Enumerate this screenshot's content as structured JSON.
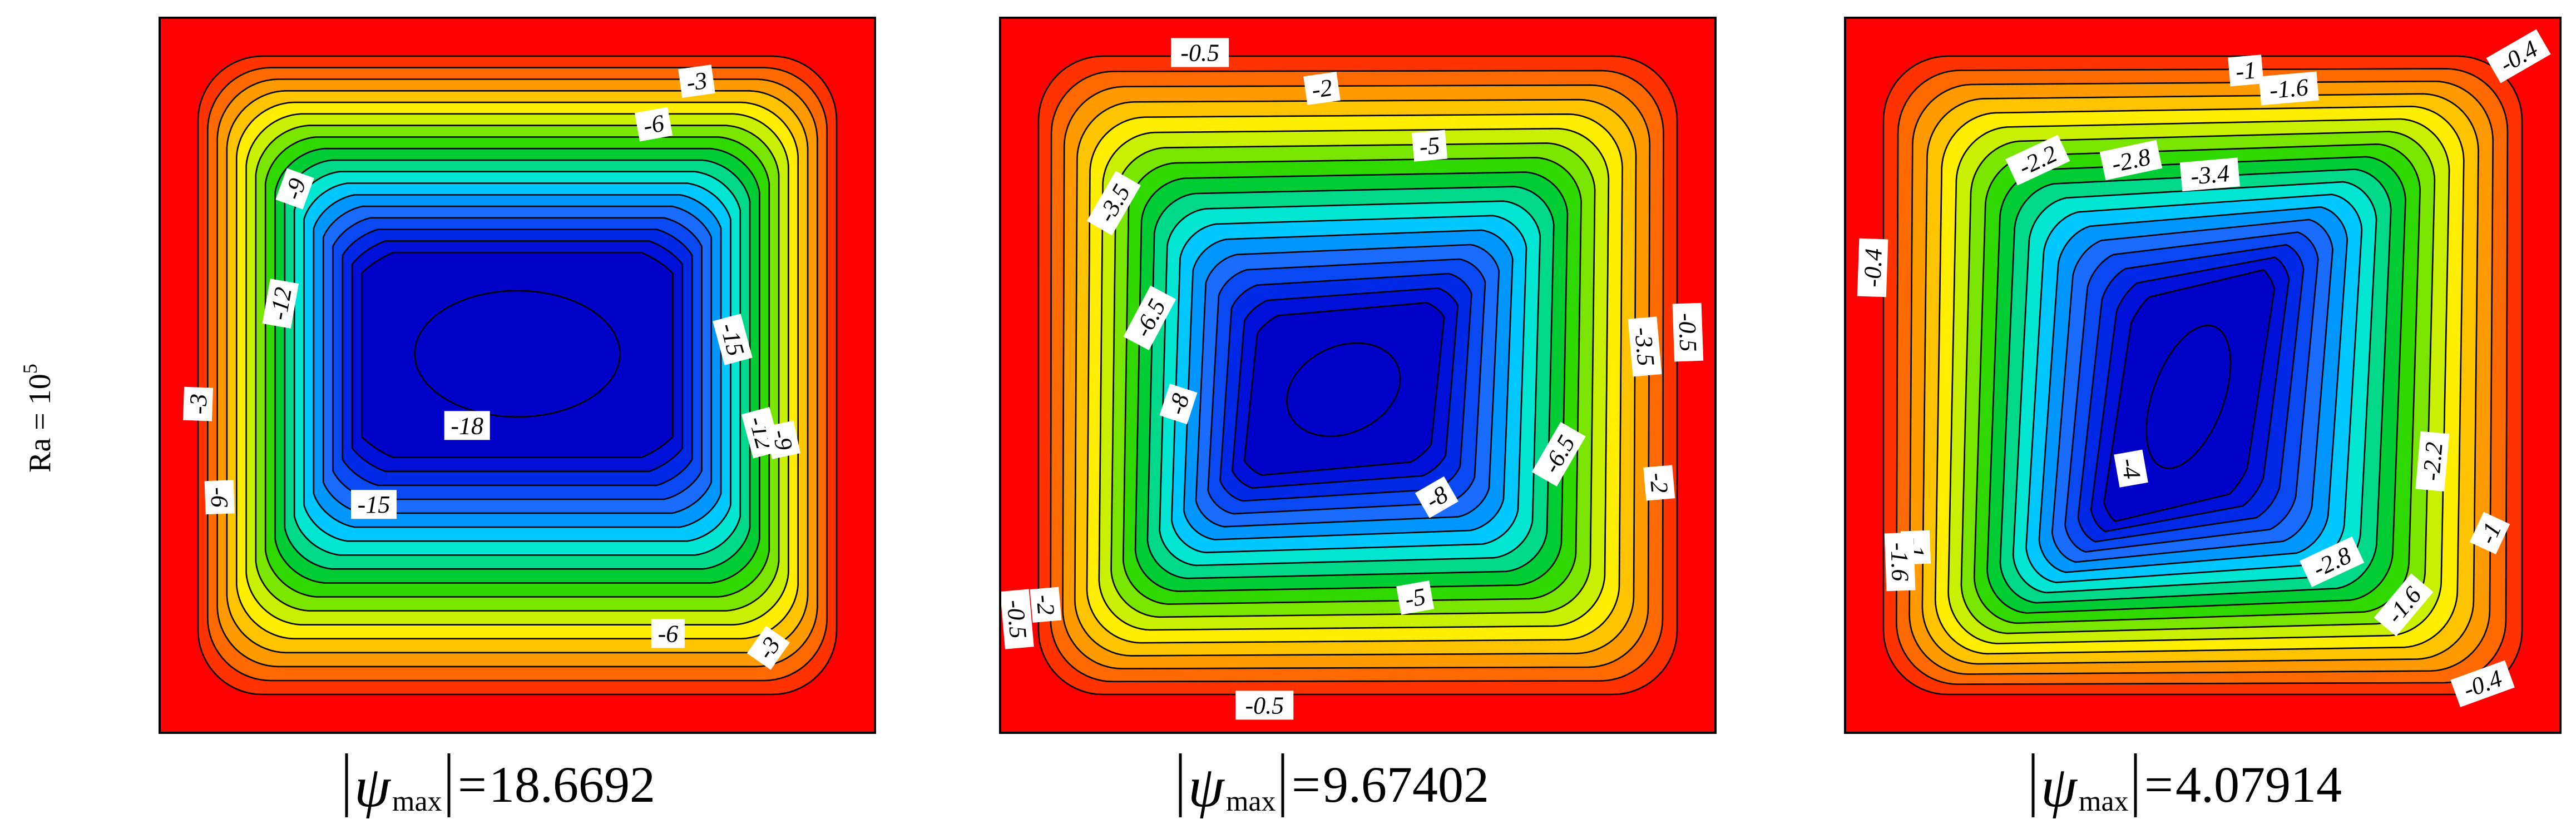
{
  "row_label": {
    "base": "Ra = 10",
    "exponent": "5"
  },
  "chart_data": [
    {
      "type": "heatmap",
      "caption": {
        "symbol": "ψ",
        "subscript": "max",
        "value": "18.6692"
      },
      "center": [
        0.5,
        0.47
      ],
      "rx": 0.26,
      "ry": 0.16,
      "angle": 0,
      "max_abs": 18.6692,
      "levels": 19,
      "contour_labels": [
        {
          "text": "-3",
          "x": 0.75,
          "y": 0.09,
          "rot": -8
        },
        {
          "text": "-6",
          "x": 0.69,
          "y": 0.15,
          "rot": -10
        },
        {
          "text": "-9",
          "x": 0.19,
          "y": 0.24,
          "rot": -70
        },
        {
          "text": "-12",
          "x": 0.17,
          "y": 0.4,
          "rot": -80
        },
        {
          "text": "-15",
          "x": 0.8,
          "y": 0.45,
          "rot": 75
        },
        {
          "text": "-18",
          "x": 0.43,
          "y": 0.57,
          "rot": 0
        },
        {
          "text": "-12",
          "x": 0.84,
          "y": 0.58,
          "rot": 75
        },
        {
          "text": "-9",
          "x": 0.87,
          "y": 0.59,
          "rot": 78
        },
        {
          "text": "-3",
          "x": 0.055,
          "y": 0.54,
          "rot": -88
        },
        {
          "text": "-6",
          "x": 0.085,
          "y": 0.67,
          "rot": 88
        },
        {
          "text": "-15",
          "x": 0.3,
          "y": 0.68,
          "rot": 0
        },
        {
          "text": "-6",
          "x": 0.71,
          "y": 0.86,
          "rot": 0
        },
        {
          "text": "-3",
          "x": 0.85,
          "y": 0.88,
          "rot": -55
        }
      ]
    },
    {
      "type": "heatmap",
      "caption": {
        "symbol": "ψ",
        "subscript": "max",
        "value": "9.67402"
      },
      "center": [
        0.48,
        0.52
      ],
      "rx": 0.15,
      "ry": 0.11,
      "angle": -25,
      "max_abs": 9.67402,
      "levels": 19,
      "contour_labels": [
        {
          "text": "-0.5",
          "x": 0.28,
          "y": 0.05,
          "rot": 0
        },
        {
          "text": "-2",
          "x": 0.45,
          "y": 0.1,
          "rot": -8
        },
        {
          "text": "-5",
          "x": 0.6,
          "y": 0.18,
          "rot": -5
        },
        {
          "text": "-3.5",
          "x": 0.16,
          "y": 0.26,
          "rot": -60
        },
        {
          "text": "-6.5",
          "x": 0.21,
          "y": 0.42,
          "rot": -62
        },
        {
          "text": "-8",
          "x": 0.25,
          "y": 0.54,
          "rot": -72
        },
        {
          "text": "-3.5",
          "x": 0.9,
          "y": 0.46,
          "rot": 85
        },
        {
          "text": "-0.5",
          "x": 0.96,
          "y": 0.44,
          "rot": 88
        },
        {
          "text": "-6.5",
          "x": 0.78,
          "y": 0.61,
          "rot": -60
        },
        {
          "text": "-8",
          "x": 0.61,
          "y": 0.67,
          "rot": -30
        },
        {
          "text": "-2",
          "x": 0.92,
          "y": 0.65,
          "rot": 85
        },
        {
          "text": "-5",
          "x": 0.58,
          "y": 0.81,
          "rot": -10
        },
        {
          "text": "-2",
          "x": 0.065,
          "y": 0.82,
          "rot": 85
        },
        {
          "text": "-0.5",
          "x": 0.025,
          "y": 0.84,
          "rot": 85
        },
        {
          "text": "-0.5",
          "x": 0.37,
          "y": 0.96,
          "rot": 0
        }
      ]
    },
    {
      "type": "heatmap",
      "caption": {
        "symbol": "ψ",
        "subscript": "max",
        "value": "4.07914"
      },
      "center": [
        0.48,
        0.53
      ],
      "rx": 0.09,
      "ry": 0.19,
      "angle": 20,
      "max_abs": 4.07914,
      "levels": 19,
      "contour_labels": [
        {
          "text": "-0.4",
          "x": 0.94,
          "y": 0.055,
          "rot": -30
        },
        {
          "text": "-1",
          "x": 0.56,
          "y": 0.075,
          "rot": -5
        },
        {
          "text": "-1.6",
          "x": 0.62,
          "y": 0.1,
          "rot": -5
        },
        {
          "text": "-2.2",
          "x": 0.27,
          "y": 0.2,
          "rot": -25
        },
        {
          "text": "-2.8",
          "x": 0.4,
          "y": 0.2,
          "rot": -12
        },
        {
          "text": "-3.4",
          "x": 0.51,
          "y": 0.22,
          "rot": -5
        },
        {
          "text": "-0.4",
          "x": 0.04,
          "y": 0.35,
          "rot": -88
        },
        {
          "text": "-4",
          "x": 0.4,
          "y": 0.63,
          "rot": 80
        },
        {
          "text": "-2.2",
          "x": 0.82,
          "y": 0.62,
          "rot": -85
        },
        {
          "text": "-1",
          "x": 0.9,
          "y": 0.72,
          "rot": -65
        },
        {
          "text": "-1",
          "x": 0.1,
          "y": 0.74,
          "rot": 88
        },
        {
          "text": "-1.6",
          "x": 0.078,
          "y": 0.76,
          "rot": 88
        },
        {
          "text": "-2.8",
          "x": 0.68,
          "y": 0.76,
          "rot": -25
        },
        {
          "text": "-1.6",
          "x": 0.78,
          "y": 0.82,
          "rot": -50
        },
        {
          "text": "-0.4",
          "x": 0.89,
          "y": 0.93,
          "rot": -20
        }
      ]
    }
  ]
}
